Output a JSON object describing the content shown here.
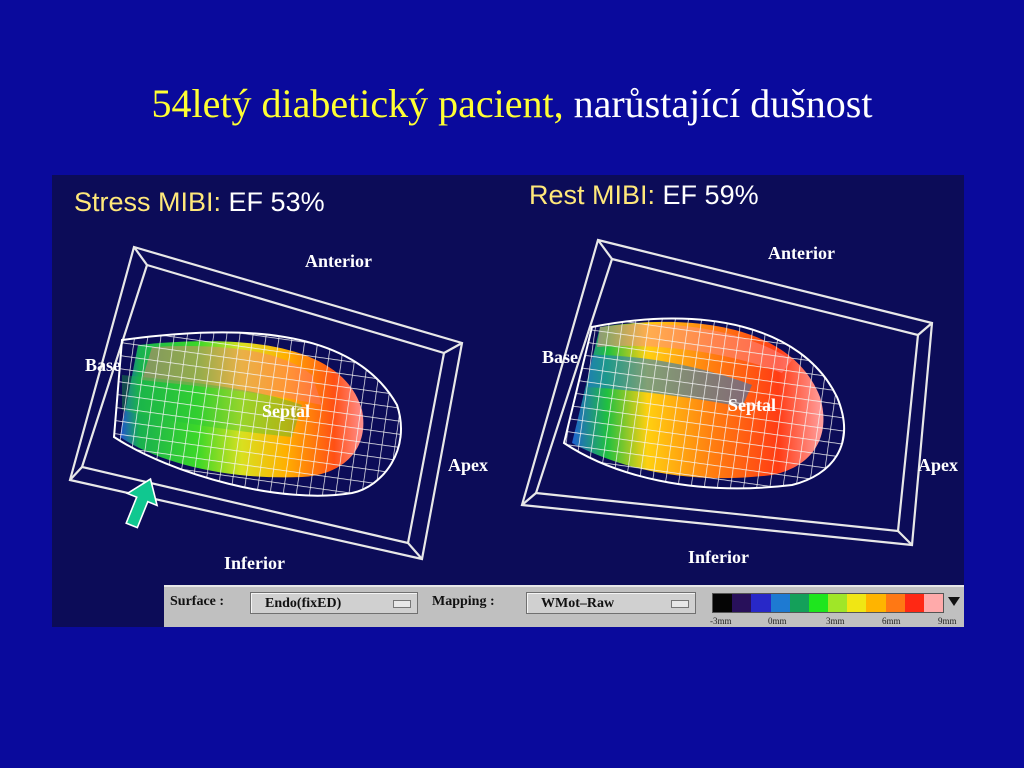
{
  "slide": {
    "title_highlight": "54letý diabetický pacient,",
    "title_rest": "narůstající dušnost"
  },
  "stress": {
    "label": "Stress MIBI:",
    "ef": "EF 53%"
  },
  "rest": {
    "label": "Rest MIBI:",
    "ef": "EF 59%"
  },
  "orientation": {
    "anterior": "Anterior",
    "base": "Base",
    "septal": "Septal",
    "apex": "Apex",
    "inferior": "Inferior"
  },
  "toolbar": {
    "surface_label": "Surface :",
    "surface_value": "Endo(fixED)",
    "mapping_label": "Mapping :",
    "mapping_value": "WMot–Raw",
    "scale_ticks": [
      "-3mm",
      "0mm",
      "3mm",
      "6mm",
      "9mm"
    ],
    "scale_colors": [
      "#050505",
      "#28105a",
      "#2828c8",
      "#1e7ad2",
      "#14a05a",
      "#1ee61e",
      "#a0e628",
      "#f0e614",
      "#ffb400",
      "#ff7814",
      "#ff2814",
      "#ffaaaa"
    ]
  },
  "colors": {
    "background": "#0a0a9c",
    "title_highlight": "#ffff33",
    "panel_background": "#0c0c58",
    "arrow": "#10c890"
  },
  "icons": {
    "arrow": "up-arrow-icon",
    "dropdown": "dropdown-caret-icon"
  }
}
